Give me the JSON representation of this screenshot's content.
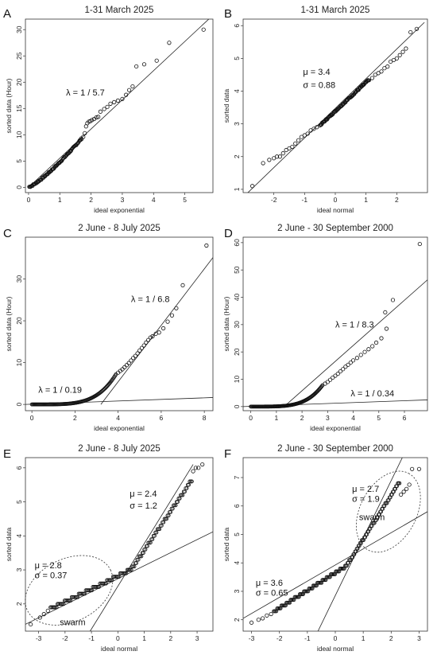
{
  "figure": {
    "panels": [
      {
        "label": "A",
        "type": "scatter",
        "title": "1-31 March 2025",
        "xlabel": "ideal exponential",
        "ylabel": "sorted data (Hour)",
        "xlim": [
          -0.1,
          5.9
        ],
        "ylim": [
          -1,
          32
        ],
        "xticks": [
          0,
          1,
          2,
          3,
          4,
          5
        ],
        "yticks": [
          0,
          5,
          10,
          15,
          20,
          25,
          30
        ],
        "mode": "exp",
        "dense": [
          [
            0.02,
            0.1
          ],
          [
            1.7,
            9.3
          ]
        ],
        "points": [
          [
            1.75,
            9.6
          ],
          [
            1.8,
            10.3
          ],
          [
            1.84,
            11.6
          ],
          [
            1.88,
            12.2
          ],
          [
            1.93,
            12.5
          ],
          [
            1.98,
            12.6
          ],
          [
            2.03,
            12.8
          ],
          [
            2.1,
            13.0
          ],
          [
            2.17,
            13.3
          ],
          [
            2.23,
            13.4
          ],
          [
            2.3,
            14.4
          ],
          [
            2.42,
            14.9
          ],
          [
            2.52,
            15.3
          ],
          [
            2.62,
            15.9
          ],
          [
            2.74,
            16.2
          ],
          [
            2.86,
            16.5
          ],
          [
            3.0,
            16.8
          ],
          [
            3.12,
            17.6
          ],
          [
            3.22,
            18.5
          ],
          [
            3.33,
            19.2
          ],
          [
            3.45,
            23.0
          ],
          [
            3.7,
            23.4
          ],
          [
            4.1,
            24.1
          ],
          [
            4.5,
            27.5
          ],
          [
            5.6,
            30.0
          ]
        ],
        "lines": [
          {
            "pts": [
              [
                0,
                0
              ],
              [
                6.2,
                34.4
              ]
            ]
          }
        ],
        "annotations": [
          {
            "text": "λ = 1 / 5.7",
            "x": 1.2,
            "y": 17.5
          }
        ]
      },
      {
        "label": "B",
        "type": "scatter",
        "title": "1-31 March 2025",
        "xlabel": "ideal normal",
        "ylabel": "sorted data",
        "xlim": [
          -3,
          3
        ],
        "ylim": [
          0.9,
          6.2
        ],
        "xticks": [
          -2,
          -1,
          0,
          1,
          2
        ],
        "yticks": [
          1,
          2,
          3,
          4,
          5,
          6
        ],
        "mode": "norm",
        "dense": [
          [
            -0.5,
            2.95
          ],
          [
            1.1,
            4.35
          ]
        ],
        "points": [
          [
            -2.7,
            1.1
          ],
          [
            -2.35,
            1.8
          ],
          [
            -2.15,
            1.9
          ],
          [
            -2.0,
            1.95
          ],
          [
            -1.9,
            2.0
          ],
          [
            -1.8,
            2.0
          ],
          [
            -1.7,
            2.1
          ],
          [
            -1.6,
            2.2
          ],
          [
            -1.5,
            2.25
          ],
          [
            -1.4,
            2.3
          ],
          [
            -1.3,
            2.4
          ],
          [
            -1.2,
            2.5
          ],
          [
            -1.1,
            2.6
          ],
          [
            -1.0,
            2.65
          ],
          [
            -0.9,
            2.7
          ],
          [
            -0.8,
            2.8
          ],
          [
            -0.7,
            2.85
          ],
          [
            -0.6,
            2.9
          ],
          [
            1.2,
            4.4
          ],
          [
            1.3,
            4.5
          ],
          [
            1.4,
            4.55
          ],
          [
            1.5,
            4.6
          ],
          [
            1.6,
            4.7
          ],
          [
            1.7,
            4.75
          ],
          [
            1.8,
            4.9
          ],
          [
            1.9,
            4.95
          ],
          [
            2.0,
            5.0
          ],
          [
            2.1,
            5.1
          ],
          [
            2.2,
            5.2
          ],
          [
            2.3,
            5.3
          ],
          [
            2.45,
            5.8
          ],
          [
            2.65,
            5.9
          ]
        ],
        "lines": [
          {
            "pts": [
              [
                -2.9,
                0.85
              ],
              [
                2.9,
                6.1
              ]
            ]
          }
        ],
        "annotations": [
          {
            "text": "μ = 3.4",
            "x": -1.05,
            "y": 4.5
          },
          {
            "text": "σ = 0.88",
            "x": -1.05,
            "y": 4.1
          }
        ]
      },
      {
        "label": "C",
        "type": "scatter",
        "title": "2 June - 8 July 2025",
        "xlabel": "ideal exponential",
        "ylabel": "sorted data (Hour)",
        "xlim": [
          -0.3,
          8.4
        ],
        "ylim": [
          -1.5,
          40
        ],
        "xticks": [
          0,
          2,
          4,
          6,
          8
        ],
        "yticks": [
          0,
          10,
          20,
          30
        ],
        "mode": "exp2",
        "dense": [
          [
            0.0,
            0.05
          ],
          [
            3.9,
            7.2
          ]
        ],
        "points": [
          [
            4.0,
            7.6
          ],
          [
            4.1,
            8.0
          ],
          [
            4.2,
            8.4
          ],
          [
            4.3,
            8.9
          ],
          [
            4.4,
            9.4
          ],
          [
            4.5,
            9.9
          ],
          [
            4.6,
            10.5
          ],
          [
            4.7,
            11.1
          ],
          [
            4.8,
            11.6
          ],
          [
            4.9,
            12.2
          ],
          [
            5.0,
            12.9
          ],
          [
            5.1,
            13.5
          ],
          [
            5.2,
            14.1
          ],
          [
            5.3,
            14.8
          ],
          [
            5.4,
            15.4
          ],
          [
            5.5,
            16.0
          ],
          [
            5.6,
            16.3
          ],
          [
            5.75,
            16.9
          ],
          [
            5.9,
            17.2
          ],
          [
            6.1,
            18.2
          ],
          [
            6.3,
            19.8
          ],
          [
            6.5,
            21.3
          ],
          [
            6.7,
            23.0
          ],
          [
            7.0,
            28.5
          ],
          [
            8.1,
            38.0
          ]
        ],
        "lines": [
          {
            "pts": [
              [
                3.2,
                0
              ],
              [
                8.5,
                35.8
              ]
            ]
          },
          {
            "pts": [
              [
                -0.3,
                0
              ],
              [
                8.4,
                1.65
              ]
            ]
          }
        ],
        "annotations": [
          {
            "text": "λ = 1 / 6.8",
            "x": 4.6,
            "y": 24.5
          },
          {
            "text": "λ = 1 / 0.19",
            "x": 0.3,
            "y": 2.8
          }
        ]
      },
      {
        "label": "D",
        "type": "scatter",
        "title": "2 June - 30 September 2000",
        "xlabel": "ideal exponential",
        "ylabel": "sorted data (Hour)",
        "xlim": [
          -0.3,
          6.9
        ],
        "ylim": [
          -1.5,
          62
        ],
        "xticks": [
          0,
          1,
          2,
          3,
          4,
          5,
          6
        ],
        "yticks": [
          0,
          10,
          20,
          30,
          40,
          50,
          60
        ],
        "mode": "exp3",
        "dense": [
          [
            0.0,
            0.05
          ],
          [
            2.8,
            7.8
          ]
        ],
        "points": [
          [
            2.9,
            8.4
          ],
          [
            3.0,
            9.0
          ],
          [
            3.1,
            9.8
          ],
          [
            3.2,
            10.6
          ],
          [
            3.3,
            11.3
          ],
          [
            3.4,
            12.0
          ],
          [
            3.5,
            12.9
          ],
          [
            3.6,
            13.7
          ],
          [
            3.7,
            14.6
          ],
          [
            3.8,
            15.3
          ],
          [
            3.9,
            16.1
          ],
          [
            4.0,
            16.9
          ],
          [
            4.15,
            17.8
          ],
          [
            4.3,
            18.9
          ],
          [
            4.45,
            20.0
          ],
          [
            4.6,
            21.0
          ],
          [
            4.75,
            22.1
          ],
          [
            4.9,
            23.4
          ],
          [
            5.1,
            25.0
          ],
          [
            5.3,
            28.5
          ],
          [
            5.25,
            34.5
          ],
          [
            5.55,
            39.0
          ],
          [
            6.6,
            59.5
          ]
        ],
        "lines": [
          {
            "pts": [
              [
                1.3,
                0
              ],
              [
                7.0,
                47.2
              ]
            ]
          },
          {
            "pts": [
              [
                -0.3,
                0
              ],
              [
                6.9,
                2.45
              ]
            ]
          }
        ],
        "annotations": [
          {
            "text": "λ = 1 / 8.3",
            "x": 3.3,
            "y": 29.0
          },
          {
            "text": "λ = 1 / 0.34",
            "x": 3.9,
            "y": 3.8
          }
        ]
      },
      {
        "label": "E",
        "type": "scatter",
        "title": "2 June - 8 July 2025",
        "xlabel": "ideal normal",
        "ylabel": "sorted data",
        "xlim": [
          -3.5,
          3.6
        ],
        "ylim": [
          1.2,
          6.3
        ],
        "xticks": [
          -3,
          -2,
          -1,
          0,
          1,
          2,
          3
        ],
        "yticks": [
          2,
          3,
          4,
          5,
          6
        ],
        "mode": "stepE",
        "points": [
          [
            -3.3,
            1.4
          ],
          [
            -2.95,
            1.6
          ],
          [
            -2.8,
            1.7
          ],
          [
            -2.65,
            1.8
          ],
          [
            2.85,
            5.9
          ],
          [
            2.95,
            6.0
          ],
          [
            3.05,
            6.0
          ],
          [
            3.2,
            6.1
          ]
        ],
        "lines": [
          {
            "pts": [
              [
                -3.5,
                1.4
              ],
              [
                3.6,
                4.12
              ]
            ]
          },
          {
            "pts": [
              [
                -1.05,
                1.2
              ],
              [
                2.85,
                6.1
              ]
            ]
          }
        ],
        "ellipse": {
          "cx": -1.85,
          "cy": 2.4,
          "rx": 1.75,
          "ry": 0.42,
          "angle": -26
        },
        "annotations": [
          {
            "text": "μ = 2.4",
            "x": 0.45,
            "y": 5.15
          },
          {
            "text": "σ = 1.2",
            "x": 0.45,
            "y": 4.8
          },
          {
            "text": "μ = 2.8",
            "x": -3.15,
            "y": 3.05
          },
          {
            "text": "σ = 0.37",
            "x": -3.15,
            "y": 2.75
          },
          {
            "text": "swarm",
            "x": -2.2,
            "y": 1.38
          }
        ]
      },
      {
        "label": "F",
        "type": "scatter",
        "title": "2 June - 30 September 2000",
        "xlabel": "ideal normal",
        "ylabel": "sorted data",
        "xlim": [
          -3.3,
          3.3
        ],
        "ylim": [
          1.6,
          7.7
        ],
        "xticks": [
          -3,
          -2,
          -1,
          0,
          1,
          2,
          3
        ],
        "yticks": [
          2,
          3,
          4,
          5,
          6,
          7
        ],
        "mode": "stepF",
        "points": [
          [
            -3.0,
            1.9
          ],
          [
            -2.75,
            2.0
          ],
          [
            -2.6,
            2.05
          ],
          [
            -2.45,
            2.15
          ],
          [
            -2.3,
            2.2
          ],
          [
            2.35,
            6.4
          ],
          [
            2.45,
            6.5
          ],
          [
            2.55,
            6.6
          ],
          [
            2.65,
            6.75
          ],
          [
            2.75,
            7.3
          ],
          [
            3.0,
            7.3
          ]
        ],
        "lines": [
          {
            "pts": [
              [
                -3.3,
                2.05
              ],
              [
                3.3,
                5.8
              ]
            ]
          },
          {
            "pts": [
              [
                -0.62,
                1.6
              ],
              [
                2.4,
                7.7
              ]
            ]
          }
        ],
        "ellipse": {
          "cx": 1.9,
          "cy": 5.8,
          "rx": 1.55,
          "ry": 0.45,
          "angle": -62
        },
        "annotations": [
          {
            "text": "μ = 2.7",
            "x": 0.6,
            "y": 6.5
          },
          {
            "text": "σ = 1.9",
            "x": 0.6,
            "y": 6.15
          },
          {
            "text": "swarm",
            "x": 0.85,
            "y": 5.5
          },
          {
            "text": "μ = 3.6",
            "x": -2.85,
            "y": 3.2
          },
          {
            "text": "σ = 0.65",
            "x": -2.85,
            "y": 2.85
          }
        ]
      }
    ]
  }
}
